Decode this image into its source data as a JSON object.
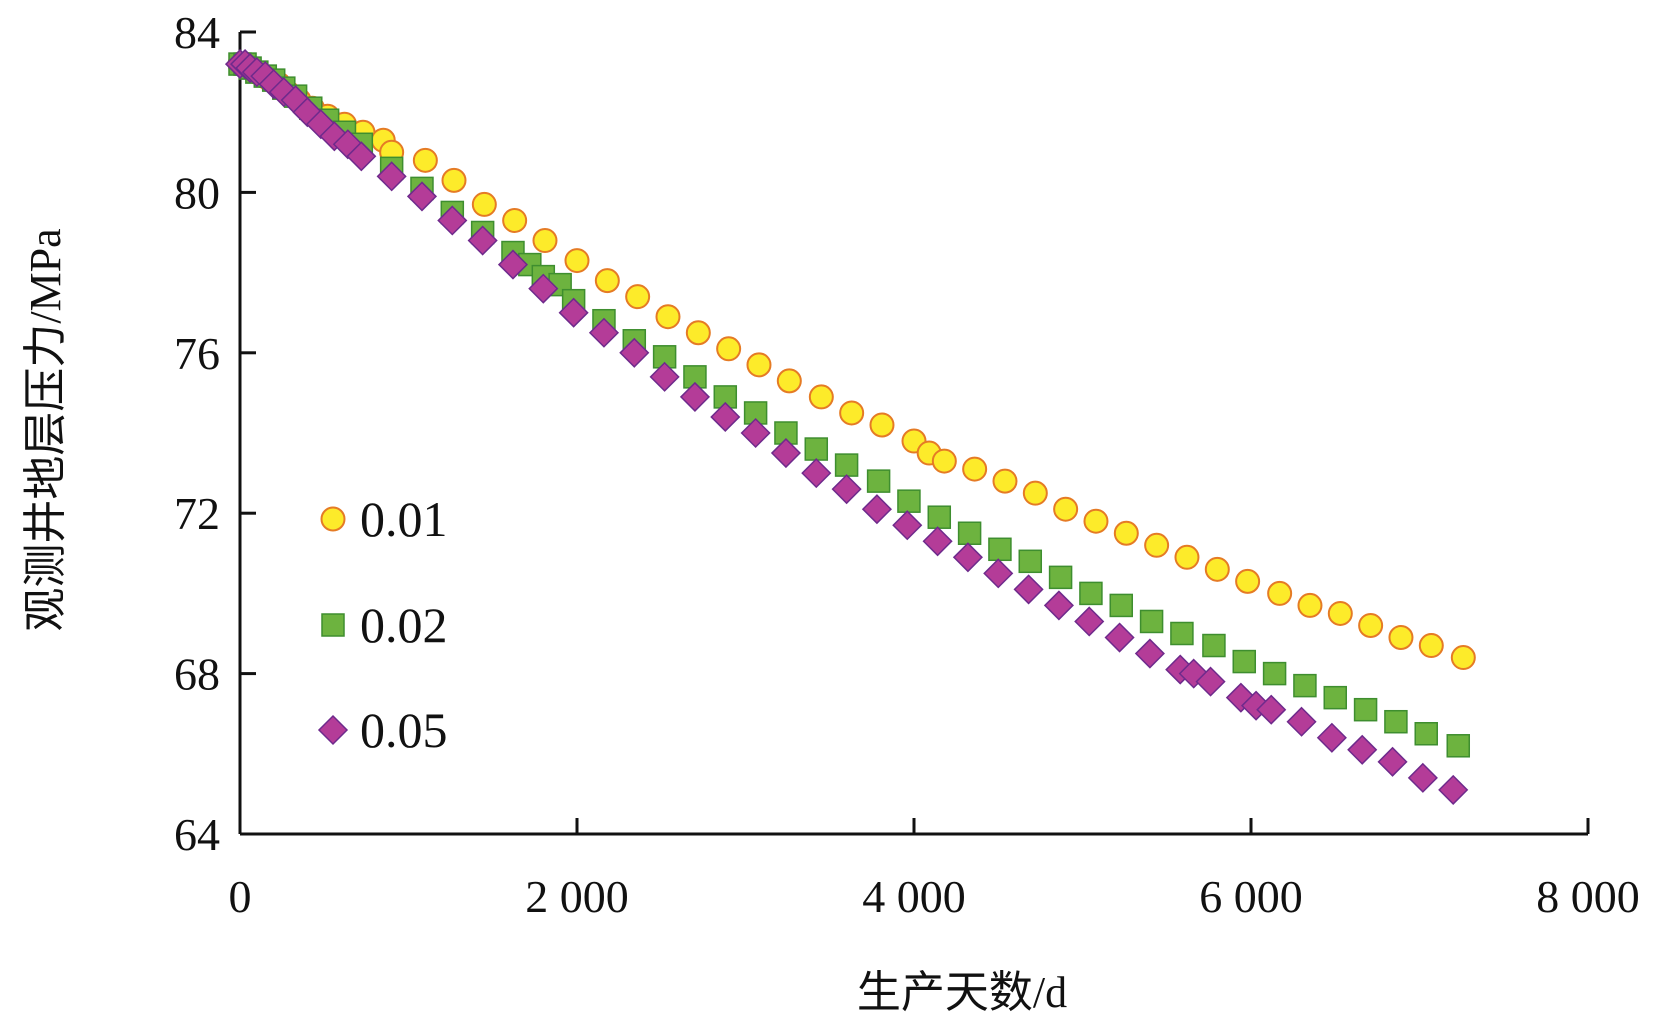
{
  "colors": {
    "yellow_fill": "#FDEB2A",
    "yellow_stroke": "#E57B25",
    "green_fill": "#6DB33F",
    "green_stroke": "#3E8E2F",
    "purple_fill": "#B43C98",
    "purple_stroke": "#6E2A8C",
    "axis": "#111111"
  },
  "chart_data": {
    "type": "scatter",
    "title": "",
    "xlabel": "生产天数/d",
    "ylabel": "观测井地层压力/MPa",
    "xlim": [
      0,
      8000
    ],
    "ylim": [
      64,
      84
    ],
    "xticks": [
      0,
      2000,
      4000,
      6000,
      8000
    ],
    "xtick_labels": [
      "0",
      "2 000",
      "4 000",
      "6 000",
      "8 000"
    ],
    "yticks": [
      64,
      68,
      72,
      76,
      80,
      84
    ],
    "ytick_labels": [
      "64",
      "68",
      "72",
      "76",
      "80",
      "84"
    ],
    "grid": false,
    "legend_position": "left-middle",
    "series": [
      {
        "name": "0.01",
        "marker": "circle",
        "color": "#FDEB2A",
        "points": [
          [
            0,
            83.2
          ],
          [
            30,
            83.2
          ],
          [
            60,
            83.1
          ],
          [
            100,
            83.0
          ],
          [
            140,
            82.9
          ],
          [
            180,
            82.8
          ],
          [
            230,
            82.7
          ],
          [
            280,
            82.5
          ],
          [
            350,
            82.3
          ],
          [
            430,
            82.1
          ],
          [
            520,
            81.9
          ],
          [
            620,
            81.7
          ],
          [
            730,
            81.5
          ],
          [
            850,
            81.3
          ],
          [
            900,
            81.0
          ],
          [
            1100,
            80.8
          ],
          [
            1270,
            80.3
          ],
          [
            1450,
            79.7
          ],
          [
            1630,
            79.3
          ],
          [
            1810,
            78.8
          ],
          [
            2000,
            78.3
          ],
          [
            2180,
            77.8
          ],
          [
            2360,
            77.4
          ],
          [
            2540,
            76.9
          ],
          [
            2720,
            76.5
          ],
          [
            2900,
            76.1
          ],
          [
            3080,
            75.7
          ],
          [
            3260,
            75.3
          ],
          [
            3450,
            74.9
          ],
          [
            3630,
            74.5
          ],
          [
            3810,
            74.2
          ],
          [
            4000,
            73.8
          ],
          [
            4090,
            73.5
          ],
          [
            4180,
            73.3
          ],
          [
            4360,
            73.1
          ],
          [
            4540,
            72.8
          ],
          [
            4720,
            72.5
          ],
          [
            4900,
            72.1
          ],
          [
            5080,
            71.8
          ],
          [
            5260,
            71.5
          ],
          [
            5440,
            71.2
          ],
          [
            5620,
            70.9
          ],
          [
            5800,
            70.6
          ],
          [
            5980,
            70.3
          ],
          [
            6170,
            70.0
          ],
          [
            6350,
            69.7
          ],
          [
            6530,
            69.5
          ],
          [
            6710,
            69.2
          ],
          [
            6890,
            68.9
          ],
          [
            7070,
            68.7
          ],
          [
            7260,
            68.4
          ]
        ]
      },
      {
        "name": "0.02",
        "marker": "square",
        "color": "#6DB33F",
        "points": [
          [
            0,
            83.2
          ],
          [
            30,
            83.2
          ],
          [
            60,
            83.1
          ],
          [
            100,
            83.0
          ],
          [
            150,
            82.9
          ],
          [
            200,
            82.8
          ],
          [
            260,
            82.6
          ],
          [
            330,
            82.4
          ],
          [
            420,
            82.1
          ],
          [
            520,
            81.8
          ],
          [
            620,
            81.5
          ],
          [
            720,
            81.2
          ],
          [
            900,
            80.6
          ],
          [
            1080,
            80.1
          ],
          [
            1260,
            79.5
          ],
          [
            1440,
            79.0
          ],
          [
            1620,
            78.5
          ],
          [
            1720,
            78.2
          ],
          [
            1800,
            77.9
          ],
          [
            1900,
            77.7
          ],
          [
            1980,
            77.3
          ],
          [
            2160,
            76.8
          ],
          [
            2340,
            76.3
          ],
          [
            2520,
            75.9
          ],
          [
            2700,
            75.4
          ],
          [
            2880,
            74.9
          ],
          [
            3060,
            74.5
          ],
          [
            3240,
            74.0
          ],
          [
            3420,
            73.6
          ],
          [
            3600,
            73.2
          ],
          [
            3790,
            72.8
          ],
          [
            3970,
            72.3
          ],
          [
            4150,
            71.9
          ],
          [
            4330,
            71.5
          ],
          [
            4510,
            71.1
          ],
          [
            4690,
            70.8
          ],
          [
            4870,
            70.4
          ],
          [
            5050,
            70.0
          ],
          [
            5230,
            69.7
          ],
          [
            5410,
            69.3
          ],
          [
            5590,
            69.0
          ],
          [
            5780,
            68.7
          ],
          [
            5960,
            68.3
          ],
          [
            6140,
            68.0
          ],
          [
            6320,
            67.7
          ],
          [
            6500,
            67.4
          ],
          [
            6680,
            67.1
          ],
          [
            6860,
            66.8
          ],
          [
            7040,
            66.5
          ],
          [
            7230,
            66.2
          ]
        ]
      },
      {
        "name": "0.05",
        "marker": "diamond",
        "color": "#B43C98",
        "points": [
          [
            0,
            83.2
          ],
          [
            30,
            83.2
          ],
          [
            60,
            83.1
          ],
          [
            100,
            83.0
          ],
          [
            150,
            82.9
          ],
          [
            200,
            82.7
          ],
          [
            260,
            82.5
          ],
          [
            330,
            82.3
          ],
          [
            400,
            82.0
          ],
          [
            480,
            81.7
          ],
          [
            560,
            81.4
          ],
          [
            640,
            81.2
          ],
          [
            720,
            80.9
          ],
          [
            900,
            80.4
          ],
          [
            1080,
            79.9
          ],
          [
            1260,
            79.3
          ],
          [
            1440,
            78.8
          ],
          [
            1620,
            78.2
          ],
          [
            1800,
            77.6
          ],
          [
            1980,
            77.0
          ],
          [
            2160,
            76.5
          ],
          [
            2340,
            76.0
          ],
          [
            2520,
            75.4
          ],
          [
            2700,
            74.9
          ],
          [
            2880,
            74.4
          ],
          [
            3060,
            74.0
          ],
          [
            3240,
            73.5
          ],
          [
            3420,
            73.0
          ],
          [
            3600,
            72.6
          ],
          [
            3780,
            72.1
          ],
          [
            3960,
            71.7
          ],
          [
            4140,
            71.3
          ],
          [
            4320,
            70.9
          ],
          [
            4500,
            70.5
          ],
          [
            4680,
            70.1
          ],
          [
            4860,
            69.7
          ],
          [
            5040,
            69.3
          ],
          [
            5220,
            68.9
          ],
          [
            5400,
            68.5
          ],
          [
            5580,
            68.1
          ],
          [
            5660,
            68.0
          ],
          [
            5760,
            67.8
          ],
          [
            5940,
            67.4
          ],
          [
            6030,
            67.2
          ],
          [
            6120,
            67.1
          ],
          [
            6300,
            66.8
          ],
          [
            6480,
            66.4
          ],
          [
            6660,
            66.1
          ],
          [
            6840,
            65.8
          ],
          [
            7020,
            65.4
          ],
          [
            7200,
            65.1
          ]
        ]
      }
    ]
  }
}
